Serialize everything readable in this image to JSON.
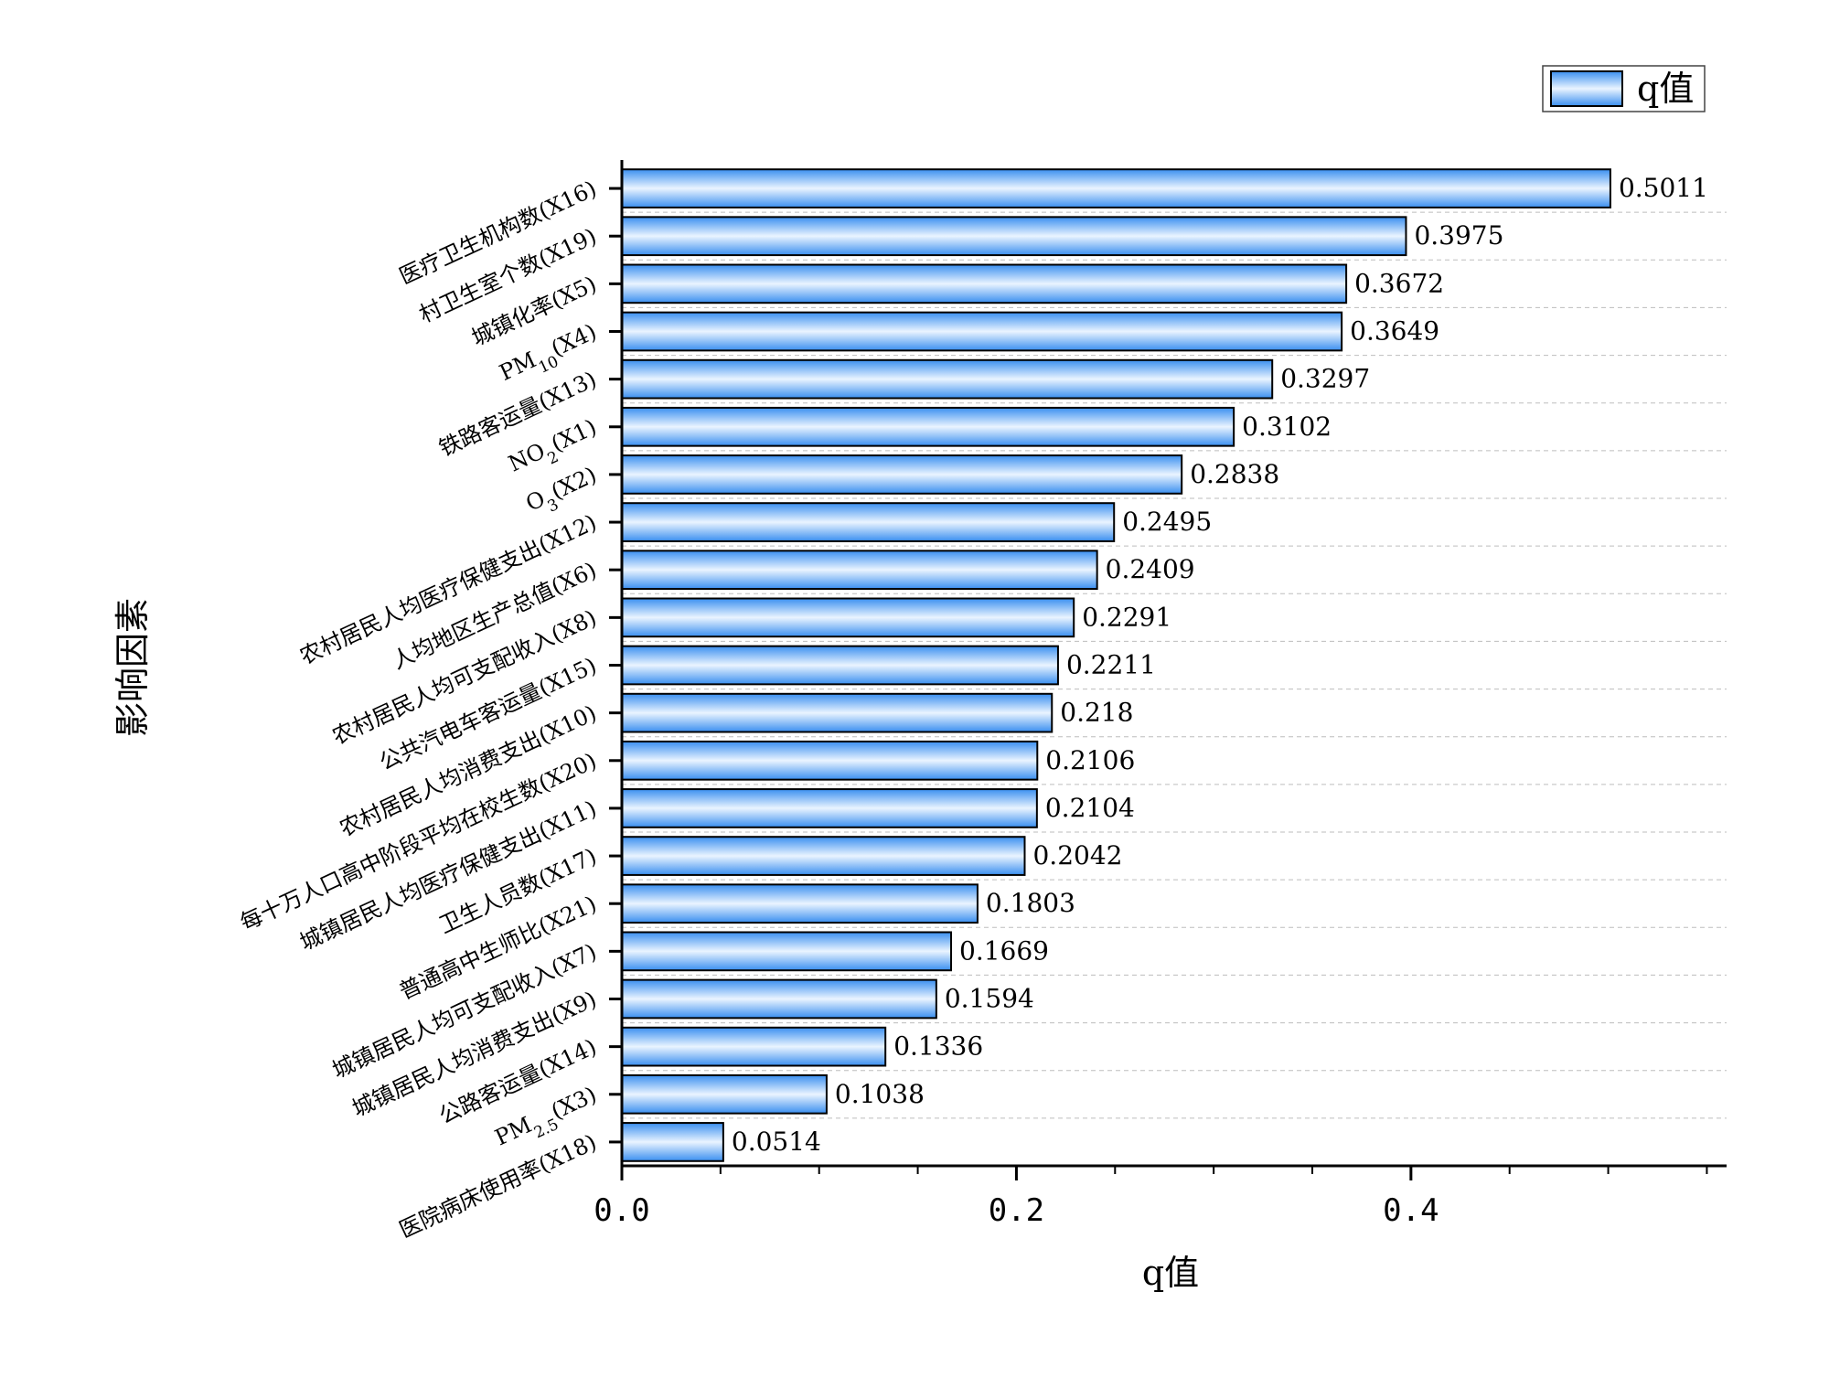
{
  "chart_data": {
    "type": "bar",
    "orientation": "horizontal",
    "xlabel": "q值",
    "ylabel": "影响因素",
    "xlim": [
      0,
      0.56
    ],
    "xticks": [
      "0.0",
      "0.2",
      "0.4"
    ],
    "grid": "horizontal dashed",
    "legend": {
      "position": "top-right",
      "entries": [
        "q值"
      ]
    },
    "colors": {
      "bar_edge": "#3a8ff0",
      "bar_center": "#eaf4ff",
      "bar_stroke": "#000000"
    },
    "categories": [
      {
        "base": "医疗卫生机构数",
        "sub": "",
        "code": "(X16)"
      },
      {
        "base": "村卫生室个数",
        "sub": "",
        "code": "(X19)"
      },
      {
        "base": "城镇化率",
        "sub": "",
        "code": "(X5)"
      },
      {
        "base": "PM",
        "sub": "10",
        "code": "(X4)"
      },
      {
        "base": "铁路客运量",
        "sub": "",
        "code": "(X13)"
      },
      {
        "base": "NO",
        "sub": "2",
        "code": "(X1)"
      },
      {
        "base": "O",
        "sub": "3",
        "code": "(X2)"
      },
      {
        "base": "农村居民人均医疗保健支出",
        "sub": "",
        "code": "(X12)"
      },
      {
        "base": "人均地区生产总值",
        "sub": "",
        "code": "(X6)"
      },
      {
        "base": "农村居民人均可支配收入",
        "sub": "",
        "code": "(X8)"
      },
      {
        "base": "公共汽电车客运量",
        "sub": "",
        "code": "(X15)"
      },
      {
        "base": "农村居民人均消费支出",
        "sub": "",
        "code": "(X10)"
      },
      {
        "base": "每十万人口高中阶段平均在校生数",
        "sub": "",
        "code": "(X20)"
      },
      {
        "base": "城镇居民人均医疗保健支出",
        "sub": "",
        "code": "(X11)"
      },
      {
        "base": "卫生人员数",
        "sub": "",
        "code": "(X17)"
      },
      {
        "base": "普通高中生师比",
        "sub": "",
        "code": "(X21)"
      },
      {
        "base": "城镇居民人均可支配收入",
        "sub": "",
        "code": "(X7)"
      },
      {
        "base": "城镇居民人均消费支出",
        "sub": "",
        "code": "(X9)"
      },
      {
        "base": "公路客运量",
        "sub": "",
        "code": "(X14)"
      },
      {
        "base": "PM",
        "sub": "2.5",
        "code": "(X3)"
      },
      {
        "base": "医院病床使用率",
        "sub": "",
        "code": "(X18)"
      }
    ],
    "values": [
      0.5011,
      0.3975,
      0.3672,
      0.3649,
      0.3297,
      0.3102,
      0.2838,
      0.2495,
      0.2409,
      0.2291,
      0.2211,
      0.218,
      0.2106,
      0.2104,
      0.2042,
      0.1803,
      0.1669,
      0.1594,
      0.1336,
      0.1038,
      0.0514
    ],
    "value_labels": [
      "0.5011",
      "0.3975",
      "0.3672",
      "0.3649",
      "0.3297",
      "0.3102",
      "0.2838",
      "0.2495",
      "0.2409",
      "0.2291",
      "0.2211",
      "0.218",
      "0.2106",
      "0.2104",
      "0.2042",
      "0.1803",
      "0.1669",
      "0.1594",
      "0.1336",
      "0.1038",
      "0.0514"
    ]
  }
}
